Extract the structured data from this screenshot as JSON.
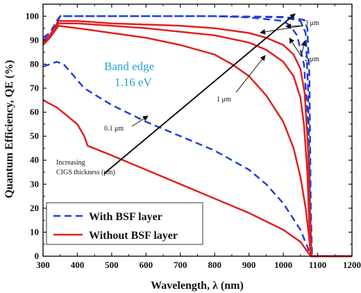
{
  "chart_data": {
    "type": "line",
    "xlabel": "Wavelength, λ (nm)",
    "ylabel": "Quantum Efficiency, QE (%)",
    "xlim": [
      300,
      1200
    ],
    "ylim": [
      0,
      105
    ],
    "xticks": [
      300,
      400,
      500,
      600,
      700,
      800,
      900,
      1000,
      1100,
      1200
    ],
    "yticks": [
      0,
      10,
      20,
      30,
      40,
      50,
      60,
      70,
      80,
      90,
      100
    ],
    "grid": false,
    "legend_position": "bottom-left",
    "legend": [
      {
        "label": "With BSF layer",
        "style": "dashed",
        "color": "#1f3fd6"
      },
      {
        "label": "Without BSF layer",
        "style": "solid",
        "color": "#e02020"
      }
    ],
    "annotations": {
      "band_edge_line1": "Band edge",
      "band_edge_line2": "1.16 eV",
      "increasing_line1": "Increasing",
      "increasing_line2": "CIGS thickness (μm)",
      "label_01": "0.1 μm",
      "label_1": "1 μm",
      "label_2": "2 μm",
      "label_3": "3 μm"
    },
    "series": [
      {
        "style": "dashed",
        "color": "#1f3fd6",
        "thickness": "0.1 μm",
        "x": [
          300,
          340,
          360,
          420,
          500,
          600,
          700,
          800,
          900,
          950,
          1000,
          1050,
          1070,
          1080,
          1100,
          1200
        ],
        "y": [
          79,
          81,
          80,
          70,
          63,
          56,
          50,
          44,
          36,
          30,
          22,
          11,
          4,
          0,
          0,
          0
        ]
      },
      {
        "style": "dashed",
        "color": "#1f3fd6",
        "thickness": "1 μm",
        "x": [
          300,
          320,
          340,
          350,
          400,
          500,
          600,
          700,
          800,
          900,
          1000,
          1020,
          1040,
          1060,
          1070,
          1075,
          1080,
          1100,
          1200
        ],
        "y": [
          90,
          92,
          97,
          100,
          100,
          100,
          100,
          100,
          100,
          99.5,
          98,
          96,
          92,
          80,
          60,
          30,
          0,
          0,
          0
        ]
      },
      {
        "style": "dashed",
        "color": "#1f3fd6",
        "thickness": "2 μm",
        "x": [
          300,
          320,
          340,
          350,
          400,
          600,
          800,
          1000,
          1050,
          1065,
          1072,
          1078,
          1082,
          1100,
          1200
        ],
        "y": [
          91,
          93,
          98,
          100,
          100,
          100,
          100,
          99.5,
          98,
          93,
          70,
          20,
          0,
          0,
          0
        ]
      },
      {
        "style": "dashed",
        "color": "#1f3fd6",
        "thickness": "3 μm",
        "x": [
          300,
          320,
          340,
          350,
          400,
          600,
          800,
          1000,
          1060,
          1070,
          1076,
          1080,
          1084,
          1100,
          1200
        ],
        "y": [
          91,
          93,
          98,
          100,
          100,
          100,
          100,
          99.7,
          98.5,
          95,
          75,
          20,
          0,
          0,
          0
        ]
      },
      {
        "style": "solid",
        "color": "#e02020",
        "thickness": "0.1 μm",
        "x": [
          300,
          340,
          400,
          420,
          430,
          500,
          600,
          700,
          800,
          900,
          1000,
          1050,
          1070,
          1080,
          1100,
          1200
        ],
        "y": [
          65,
          62,
          55,
          50,
          46,
          42,
          36,
          30,
          24,
          18,
          11,
          6,
          2,
          0,
          0,
          0
        ]
      },
      {
        "style": "solid",
        "color": "#e02020",
        "thickness": "1 μm",
        "x": [
          300,
          320,
          345,
          400,
          500,
          600,
          700,
          800,
          850,
          900,
          950,
          1000,
          1030,
          1050,
          1065,
          1075,
          1080,
          1100,
          1200
        ],
        "y": [
          88,
          91,
          96,
          95,
          93,
          91,
          88,
          84,
          80,
          75,
          67,
          56,
          45,
          33,
          20,
          8,
          0,
          0,
          0
        ]
      },
      {
        "style": "solid",
        "color": "#e02020",
        "thickness": "2 μm",
        "x": [
          300,
          320,
          345,
          400,
          500,
          600,
          700,
          800,
          900,
          950,
          1000,
          1030,
          1050,
          1060,
          1070,
          1076,
          1080,
          1100,
          1200
        ],
        "y": [
          89,
          92,
          97,
          97,
          96,
          95,
          93.5,
          92,
          89,
          86,
          81,
          75,
          66,
          55,
          35,
          12,
          0,
          0,
          0
        ]
      },
      {
        "style": "solid",
        "color": "#e02020",
        "thickness": "3 μm",
        "x": [
          300,
          320,
          345,
          400,
          500,
          600,
          700,
          800,
          900,
          950,
          1000,
          1030,
          1050,
          1062,
          1072,
          1078,
          1082,
          1100,
          1200
        ],
        "y": [
          89,
          92,
          98,
          98,
          97,
          96.5,
          96,
          95,
          93,
          91,
          88,
          84,
          78,
          68,
          45,
          15,
          0,
          0,
          0
        ]
      }
    ]
  }
}
